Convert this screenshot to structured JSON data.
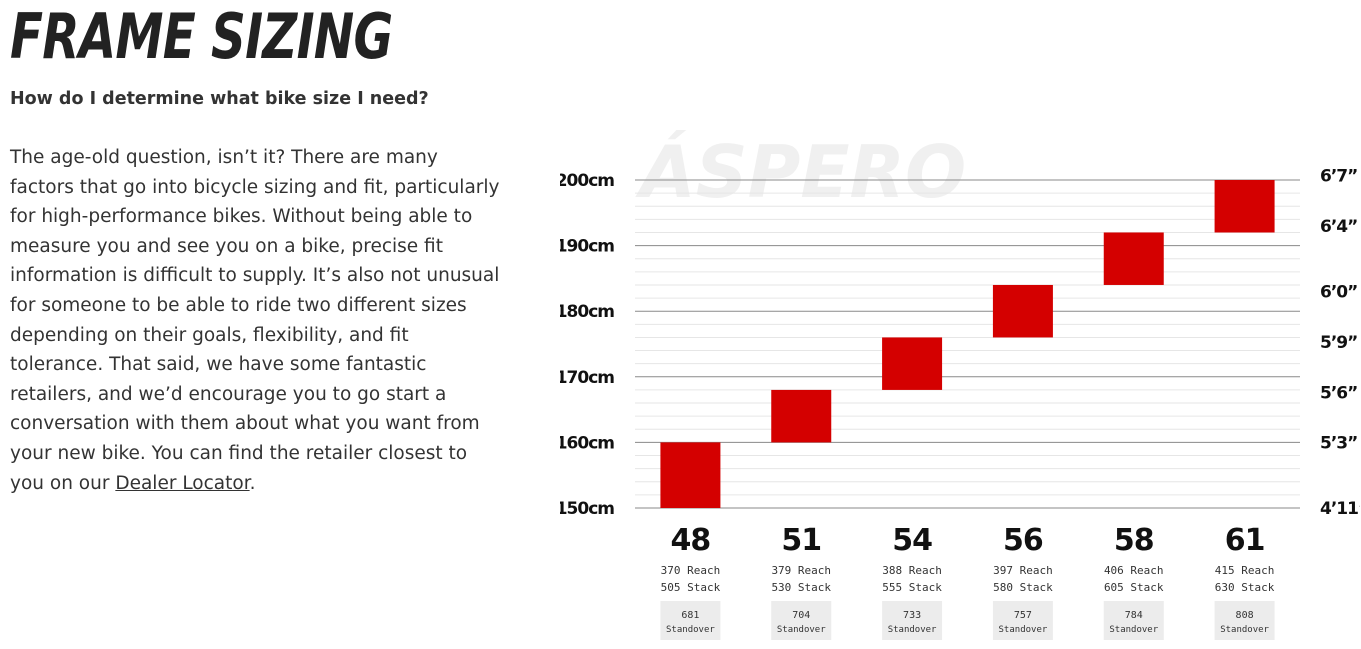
{
  "heading": "FRAME SIZING",
  "question": "How do I determine what bike size I need?",
  "body": "The age-old question, isn’t it? There are many factors that go into bicycle sizing and fit, particularly for high-performance bikes. Without being able to measure you and see you on a bike, precise fit information is difficult to supply. It’s also not unusual for someone to be able to ride two different sizes depending on their goals, flexibility, and fit tolerance. That said, we have some fantastic retailers, and we’d encourage you to go start a conversation with them about what you want from your new bike. You can find the retailer closest to you on our",
  "link_text": "Dealer Locator",
  "body_end": ".",
  "chart_data": {
    "type": "bar",
    "watermark": "ÁSPERO",
    "ylim": [
      150,
      200
    ],
    "y_ticks_cm": [
      "200cm",
      "190cm",
      "180cm",
      "170cm",
      "160cm",
      "150cm"
    ],
    "y_tick_values": [
      200,
      190,
      180,
      170,
      160,
      150
    ],
    "y_ticks_ft": [
      "6’7”",
      "6’4”",
      "6’0”",
      "5’9”",
      "5’6”",
      "5’3”",
      "4’11”"
    ],
    "y_ticks_ft_cm": [
      200.7,
      193,
      183,
      175.3,
      167.6,
      160,
      150
    ],
    "bar_color": "#d40000",
    "categories": [
      "48",
      "51",
      "54",
      "56",
      "58",
      "61"
    ],
    "ranges": [
      [
        150,
        160
      ],
      [
        160,
        168
      ],
      [
        168,
        176
      ],
      [
        176,
        184
      ],
      [
        184,
        192
      ],
      [
        192,
        200
      ]
    ],
    "reach": [
      "370 Reach",
      "379 Reach",
      "388 Reach",
      "397 Reach",
      "406 Reach",
      "415 Reach"
    ],
    "stack": [
      "505 Stack",
      "530 Stack",
      "555 Stack",
      "580 Stack",
      "605 Stack",
      "630 Stack"
    ],
    "standover_values": [
      "681",
      "704",
      "733",
      "757",
      "784",
      "808"
    ],
    "standover_label": "Standover"
  }
}
